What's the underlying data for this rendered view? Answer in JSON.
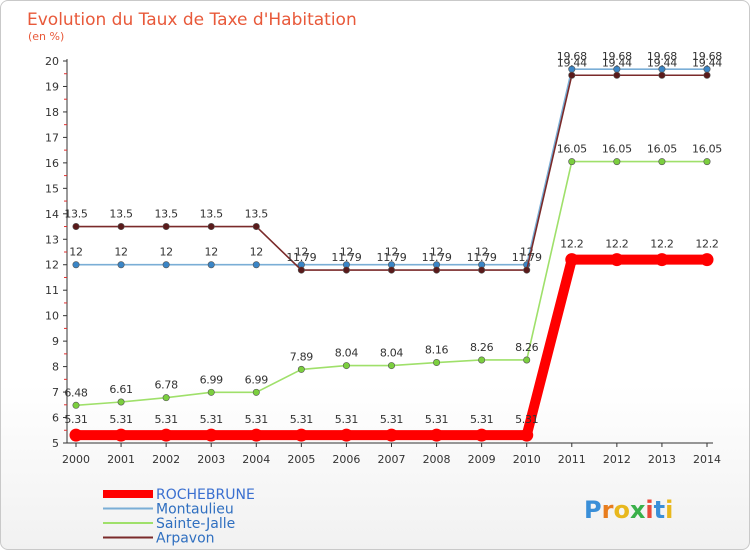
{
  "title": "Evolution du Taux de Taxe d'Habitation",
  "unit_label": "(en %)",
  "logo_text": "Proxiti",
  "chart_data": {
    "type": "line",
    "title": "Evolution du Taux de Taxe d'Habitation",
    "ylabel": "(en %)",
    "xlabel": "",
    "x": [
      "2000",
      "2001",
      "2002",
      "2003",
      "2004",
      "2005",
      "2006",
      "2007",
      "2008",
      "2009",
      "2010",
      "2011",
      "2012",
      "2013",
      "2014"
    ],
    "ylim": [
      5,
      20
    ],
    "yticks": [
      5,
      6,
      7,
      8,
      9,
      10,
      11,
      12,
      13,
      14,
      15,
      16,
      17,
      18,
      19,
      20
    ],
    "grid": false,
    "legend_position": "bottom-left",
    "series": [
      {
        "name": "ROCHEBRUNE",
        "color": "#ff0000",
        "marker": "#ff0000",
        "bold": true,
        "values": [
          5.31,
          5.31,
          5.31,
          5.31,
          5.31,
          5.31,
          5.31,
          5.31,
          5.31,
          5.31,
          5.31,
          12.2,
          12.2,
          12.2,
          12.2
        ],
        "labels": [
          "5.31",
          "5.31",
          "5.31",
          "5.31",
          "5.31",
          "5.31",
          "5.31",
          "5.31",
          "5.31",
          "5.31",
          "5.31",
          "12.2",
          "12.2",
          "12.2",
          "12.2"
        ]
      },
      {
        "name": "Montaulieu",
        "color": "#7aaed6",
        "marker": "#3a85c6",
        "bold": false,
        "values": [
          12,
          12,
          12,
          12,
          12,
          12,
          12,
          12,
          12,
          12,
          12,
          19.68,
          19.68,
          19.68,
          19.68
        ],
        "labels": [
          "12",
          "12",
          "12",
          "12",
          "12",
          "12",
          "12",
          "12",
          "12",
          "12",
          "12",
          "19.68",
          "19.68",
          "19.68",
          "19.68"
        ]
      },
      {
        "name": "Sainte-Jalle",
        "color": "#9fe06a",
        "marker": "#7bcf3e",
        "bold": false,
        "values": [
          6.48,
          6.61,
          6.78,
          6.99,
          6.99,
          7.89,
          8.04,
          8.04,
          8.16,
          8.26,
          8.26,
          16.05,
          16.05,
          16.05,
          16.05
        ],
        "labels": [
          "6.48",
          "6.61",
          "6.78",
          "6.99",
          "6.99",
          "7.89",
          "8.04",
          "8.04",
          "8.16",
          "8.26",
          "8.26",
          "16.05",
          "16.05",
          "16.05",
          "16.05"
        ]
      },
      {
        "name": "Arpavon",
        "color": "#7a2a2a",
        "marker": "#5a1a1a",
        "bold": false,
        "values": [
          13.5,
          13.5,
          13.5,
          13.5,
          13.5,
          11.79,
          11.79,
          11.79,
          11.79,
          11.79,
          11.79,
          19.44,
          19.44,
          19.44,
          19.44
        ],
        "labels": [
          "13.5",
          "13.5",
          "13.5",
          "13.5",
          "13.5",
          "11.79",
          "11.79",
          "11.79",
          "11.79",
          "11.79",
          "11.79",
          "19.44",
          "19.44",
          "19.44",
          "19.44"
        ]
      }
    ]
  }
}
